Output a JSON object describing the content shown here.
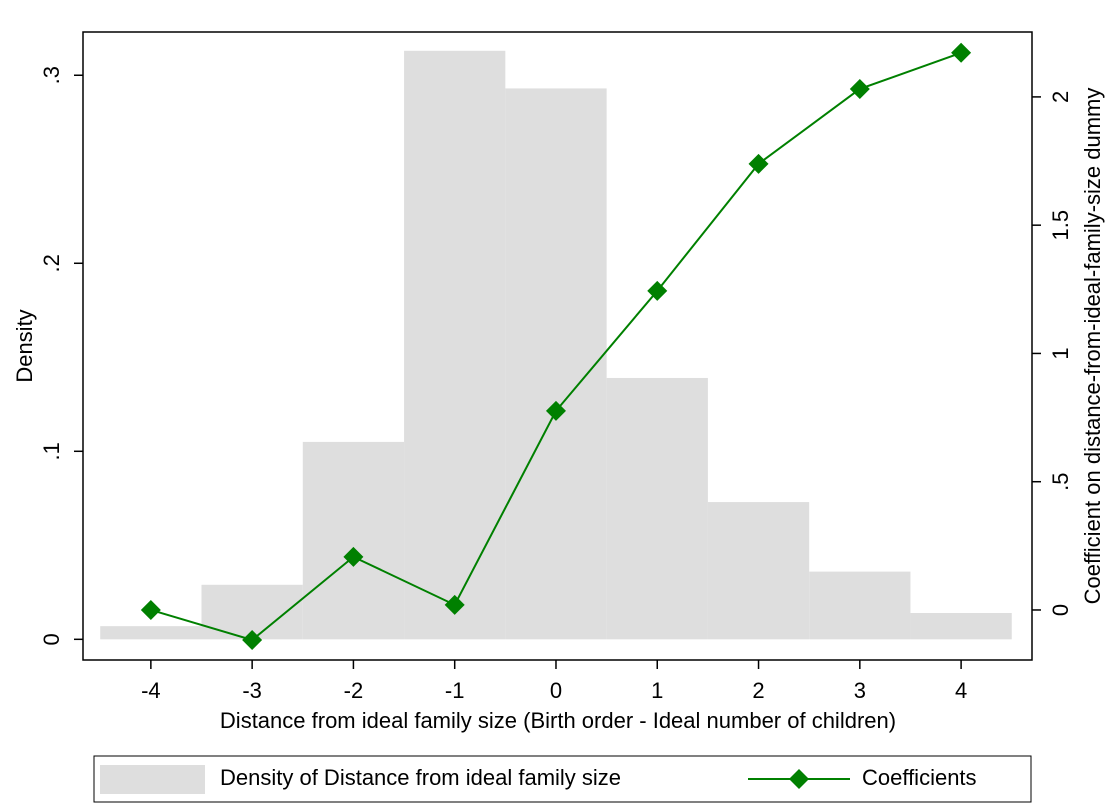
{
  "chart_data": {
    "type": "combo",
    "x_label": "Distance from ideal family size (Birth order - Ideal number of children)",
    "y_label": "Density",
    "y2_label": "Coefficient on distance-from-ideal-family-size dummy",
    "xlim": [
      -4.67,
      4.7
    ],
    "xticks": [
      -4,
      -3,
      -2,
      -1,
      0,
      1,
      2,
      3,
      4
    ],
    "ylim": [
      -0.011,
      0.323
    ],
    "yticks": [
      0,
      {
        "value": 0.1,
        "label": ".1"
      },
      {
        "value": 0.2,
        "label": ".2"
      },
      {
        "value": 0.3,
        "label": ".3"
      }
    ],
    "y2lim": [
      -0.195,
      2.253
    ],
    "y2ticks": [
      0,
      {
        "value": 0.5,
        "label": ".5"
      },
      1,
      1.5,
      2
    ],
    "series": [
      {
        "type": "histogram",
        "name": "Density of Distance from ideal family size",
        "color": "#dedede",
        "bins": [
          -4.5,
          -3.5,
          -2.5,
          -1.5,
          -0.5,
          0.5,
          1.5,
          2.5,
          3.5,
          4.5
        ],
        "values": [
          0.007,
          0.029,
          0.105,
          0.313,
          0.293,
          0.139,
          0.073,
          0.036,
          0.014
        ]
      },
      {
        "type": "line",
        "name": "Coefficients",
        "color": "#008000",
        "axis": "y2",
        "x": [
          -4,
          -3,
          -2,
          -1,
          0,
          1,
          2,
          3,
          4
        ],
        "values": [
          0.0,
          -0.117,
          0.207,
          0.02,
          0.776,
          1.244,
          1.739,
          2.031,
          2.172
        ]
      }
    ]
  }
}
